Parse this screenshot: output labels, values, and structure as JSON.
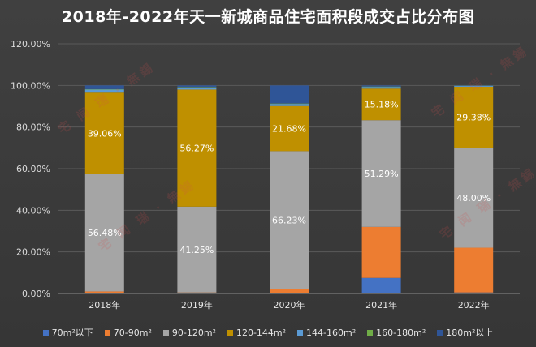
{
  "chart_data": {
    "type": "bar",
    "stacked": true,
    "title": "2018年-2022年天一新城商品住宅面积段成交占比分布图",
    "categories": [
      "2018年",
      "2019年",
      "2020年",
      "2021年",
      "2022年"
    ],
    "y_ticks": [
      "0.00%",
      "20.00%",
      "40.00%",
      "60.00%",
      "80.00%",
      "100.00%",
      "120.00%"
    ],
    "ylim": [
      0,
      120
    ],
    "grid": true,
    "legend_position": "bottom",
    "series": [
      {
        "name": "70m²以下",
        "color": "#4472c4",
        "values": [
          0,
          0,
          0,
          7.5,
          0.5
        ]
      },
      {
        "name": "70-90m²",
        "color": "#ed7d31",
        "values": [
          1,
          0.5,
          2.2,
          24.5,
          21.5
        ]
      },
      {
        "name": "90-120m²",
        "color": "#a5a5a5",
        "values": [
          56.48,
          41.25,
          66.23,
          51.29,
          48.0
        ]
      },
      {
        "name": "120-144m²",
        "color": "#bf9000",
        "values": [
          39.06,
          56.27,
          21.68,
          15.18,
          29.38
        ]
      },
      {
        "name": "144-160m²",
        "color": "#5b9bd5",
        "values": [
          1.5,
          1.0,
          1.0,
          0.8,
          0.4
        ]
      },
      {
        "name": "160-180m²",
        "color": "#70ad47",
        "values": [
          0.2,
          0.2,
          0.2,
          0.2,
          0.2
        ]
      },
      {
        "name": "180m²以上",
        "color": "#2f5597",
        "values": [
          1.76,
          0.78,
          8.69,
          0.53,
          0.02
        ]
      }
    ],
    "data_labels": [
      {
        "series": 2,
        "index": 0,
        "text": "56.48%"
      },
      {
        "series": 3,
        "index": 0,
        "text": "39.06%"
      },
      {
        "series": 2,
        "index": 1,
        "text": "41.25%"
      },
      {
        "series": 3,
        "index": 1,
        "text": "56.27%"
      },
      {
        "series": 2,
        "index": 2,
        "text": "66.23%"
      },
      {
        "series": 3,
        "index": 2,
        "text": "21.68%"
      },
      {
        "series": 2,
        "index": 3,
        "text": "51.29%"
      },
      {
        "series": 3,
        "index": 3,
        "text": "15.18%"
      },
      {
        "series": 2,
        "index": 4,
        "text": "48.00%"
      },
      {
        "series": 3,
        "index": 4,
        "text": "29.38%"
      }
    ],
    "watermark": "宅 闻 瑞 · 無錫"
  }
}
